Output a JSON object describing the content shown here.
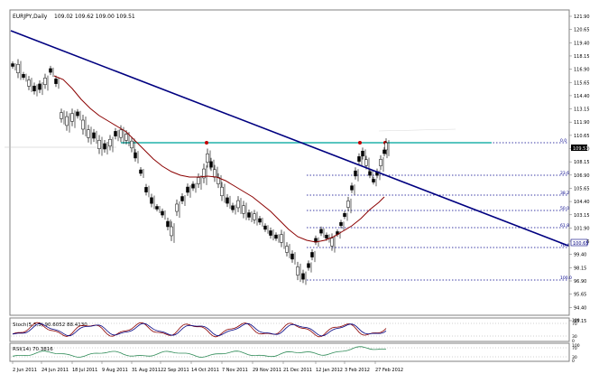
{
  "header": {
    "symbol": "EURJPY,Daily",
    "ohlc": "109.02 109.62 109.00 109.51"
  },
  "price_axis": {
    "ticks": [
      "121.90",
      "120.65",
      "119.40",
      "118.15",
      "116.90",
      "115.65",
      "114.40",
      "113.15",
      "111.90",
      "110.65",
      "109.40",
      "108.15",
      "106.90",
      "105.65",
      "104.40",
      "103.15",
      "101.90",
      "100.65",
      "99.40",
      "98.15",
      "96.90",
      "95.65",
      "94.40",
      "93.15"
    ],
    "current_price": "109.51",
    "line_price": "100.65"
  },
  "time_axis": {
    "labels": [
      "2 Jun 2011",
      "24 Jun 2011",
      "18 Jul 2011",
      "9 Aug 2011",
      "31 Aug 2011",
      "22 Sep 2011",
      "14 Oct 2011",
      "7 Nov 2011",
      "29 Nov 2011",
      "21 Dec 2011",
      "12 Jan 2012",
      "3 Feb 2012",
      "27 Feb 2012"
    ]
  },
  "fibonacci": {
    "levels": [
      "0.0",
      "23.6",
      "38.2",
      "50.0",
      "61.8",
      "76.4",
      "100.0"
    ]
  },
  "stoch": {
    "title": "Stoch(5,3,3) 90.6052 88.4130",
    "ticks": [
      "100",
      "70",
      "30",
      "0"
    ]
  },
  "rsi": {
    "title": "RSI(14) 70.3816",
    "ticks": [
      "100",
      "70",
      "30",
      "0"
    ]
  },
  "colors": {
    "candles": "#000000",
    "moving_average": "#8b0000",
    "trendline": "#000080",
    "horizontal_level": "#20b2aa",
    "fib": "#00008b",
    "stoch_main": "#8b0000",
    "stoch_signal": "#000080",
    "rsi": "#2e8b57"
  }
}
